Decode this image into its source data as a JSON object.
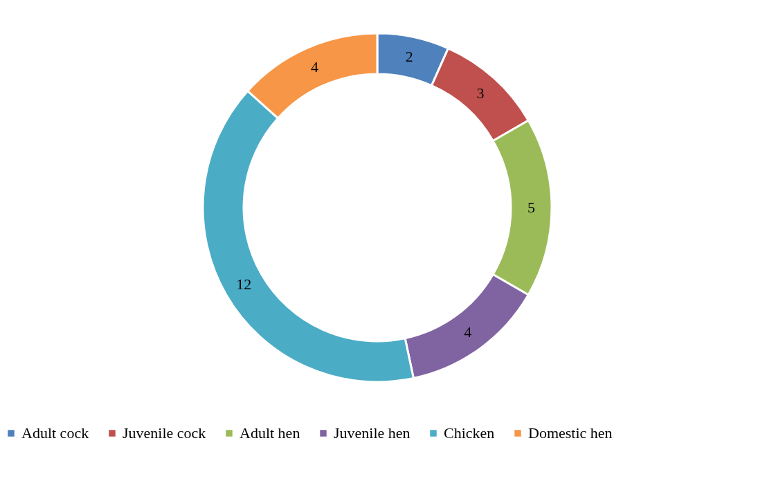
{
  "chart_data": {
    "type": "donut",
    "categories": [
      "Adult cock",
      "Juvenile cock",
      "Adult hen",
      "Juvenile hen",
      "Chicken",
      "Domestic hen"
    ],
    "values": [
      2,
      3,
      5,
      4,
      12,
      4
    ],
    "colors": [
      "#4f81bd",
      "#c0504d",
      "#9bbb59",
      "#8064a2",
      "#4bacc6",
      "#f79646"
    ],
    "data_labels": true,
    "legend": "bottom"
  }
}
